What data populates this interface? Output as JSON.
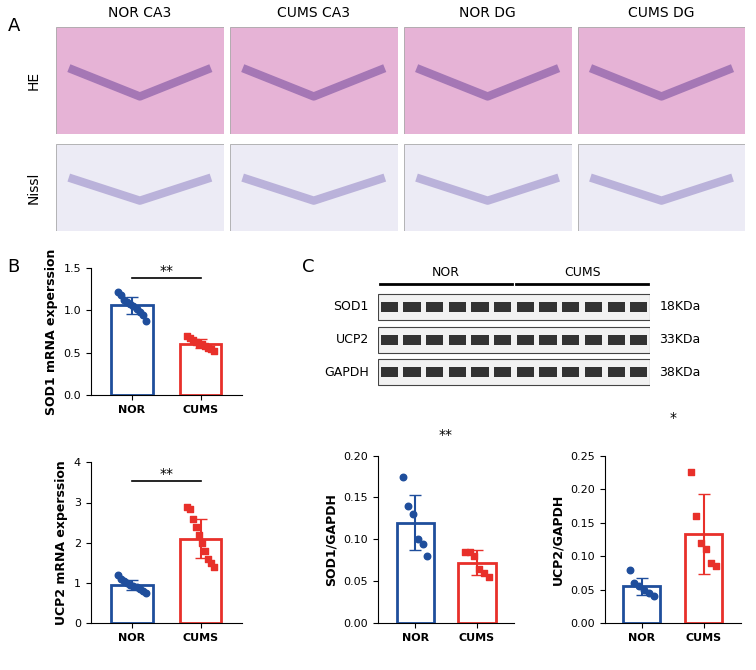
{
  "panel_labels": [
    "A",
    "B",
    "C"
  ],
  "histology": {
    "columns": [
      "NOR CA3",
      "CUMS CA3",
      "NOR DG",
      "CUMS DG"
    ],
    "rows": [
      "HE",
      "Nissl"
    ]
  },
  "blot": {
    "groups": [
      "NOR",
      "CUMS"
    ],
    "lanes_per_group": 6,
    "rows": [
      {
        "name": "SOD1",
        "size": "18KDa"
      },
      {
        "name": "UCP2",
        "size": "33KDa"
      },
      {
        "name": "GAPDH",
        "size": "38KDa"
      }
    ]
  },
  "chart_data": [
    {
      "type": "bar",
      "ylabel": "SOD1 mRNA experssion",
      "categories": [
        "NOR",
        "CUMS"
      ],
      "values": [
        1.06,
        0.61
      ],
      "errors": [
        0.1,
        0.05
      ],
      "colors": [
        "#1f4e9c",
        "#e8302a"
      ],
      "points": [
        [
          1.22,
          1.18,
          1.12,
          1.1,
          1.08,
          1.05,
          1.02,
          0.98,
          0.95,
          0.88
        ],
        [
          0.7,
          0.68,
          0.65,
          0.63,
          0.61,
          0.6,
          0.58,
          0.56,
          0.55,
          0.52
        ]
      ],
      "annotation": "**",
      "ylim": [
        0,
        1.5
      ],
      "yticks": [
        {
          "value": 0,
          "label": "0.0"
        },
        {
          "value": 0.5,
          "label": "0.5"
        },
        {
          "value": 1.0,
          "label": "1.0"
        },
        {
          "value": 1.5,
          "label": "1.5"
        }
      ]
    },
    {
      "type": "bar",
      "ylabel": "UCP2 mRNA experssion",
      "categories": [
        "NOR",
        "CUMS"
      ],
      "values": [
        0.95,
        2.1
      ],
      "errors": [
        0.13,
        0.48
      ],
      "colors": [
        "#1f4e9c",
        "#e8302a"
      ],
      "points": [
        [
          1.2,
          1.1,
          1.05,
          1.0,
          0.95,
          0.92,
          0.9,
          0.85,
          0.8,
          0.75
        ],
        [
          2.9,
          2.85,
          2.6,
          2.4,
          2.2,
          2.0,
          1.8,
          1.6,
          1.5,
          1.4
        ]
      ],
      "annotation": "**",
      "ylim": [
        0,
        4
      ],
      "yticks": [
        0,
        1,
        2,
        3,
        4
      ]
    },
    {
      "type": "bar",
      "ylabel": "SOD1/GAPDH",
      "categories": [
        "NOR",
        "CUMS"
      ],
      "values": [
        0.12,
        0.072
      ],
      "errors": [
        0.033,
        0.015
      ],
      "colors": [
        "#1f4e9c",
        "#e8302a"
      ],
      "points": [
        [
          0.175,
          0.14,
          0.13,
          0.1,
          0.095,
          0.08
        ],
        [
          0.085,
          0.085,
          0.08,
          0.065,
          0.06,
          0.055
        ]
      ],
      "annotation": "**",
      "ylim": [
        0,
        0.2
      ],
      "yticks": [
        {
          "value": 0,
          "label": "0.00"
        },
        {
          "value": 0.05,
          "label": "0.05"
        },
        {
          "value": 0.1,
          "label": "0.10"
        },
        {
          "value": 0.15,
          "label": "0.15"
        },
        {
          "value": 0.2,
          "label": "0.20"
        }
      ]
    },
    {
      "type": "bar",
      "ylabel": "UCP2/GAPDH",
      "categories": [
        "NOR",
        "CUMS"
      ],
      "values": [
        0.055,
        0.133
      ],
      "errors": [
        0.013,
        0.06
      ],
      "colors": [
        "#1f4e9c",
        "#e8302a"
      ],
      "points": [
        [
          0.08,
          0.06,
          0.055,
          0.05,
          0.045,
          0.04
        ],
        [
          0.225,
          0.16,
          0.12,
          0.11,
          0.09,
          0.085
        ]
      ],
      "annotation": "*",
      "ylim": [
        0,
        0.25
      ],
      "yticks": [
        {
          "value": 0,
          "label": "0.00"
        },
        {
          "value": 0.05,
          "label": "0.05"
        },
        {
          "value": 0.1,
          "label": "0.10"
        },
        {
          "value": 0.15,
          "label": "0.15"
        },
        {
          "value": 0.2,
          "label": "0.20"
        },
        {
          "value": 0.25,
          "label": "0.25"
        }
      ]
    }
  ]
}
